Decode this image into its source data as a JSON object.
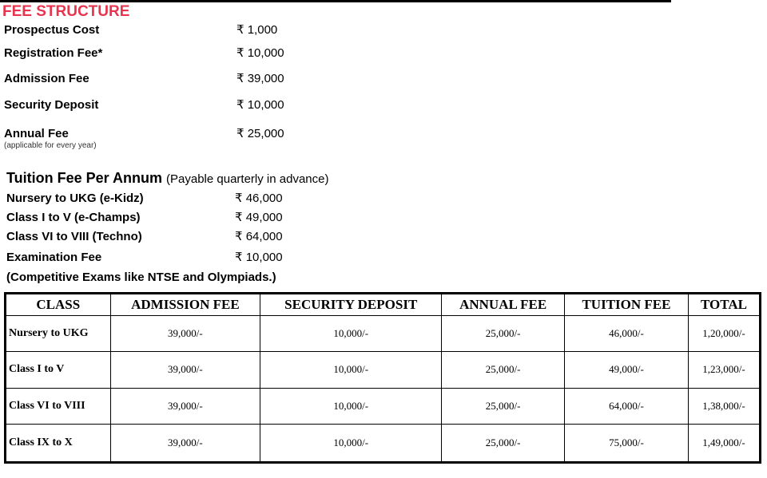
{
  "header": {
    "title": "FEE STRUCTURE"
  },
  "fees": [
    {
      "label": "Prospectus Cost",
      "amount": "₹ 1,000"
    },
    {
      "label": "Registration Fee*",
      "amount": "₹ 10,000"
    },
    {
      "label": "Admission Fee",
      "amount": "₹ 39,000"
    },
    {
      "label": "Security Deposit",
      "amount": "₹ 10,000"
    },
    {
      "label": "Annual Fee",
      "note": "(applicable for every year)",
      "amount": "₹ 25,000"
    }
  ],
  "tuition": {
    "heading": "Tuition Fee Per Annum",
    "heading_note": "(Payable quarterly in advance)",
    "rows": [
      {
        "label": "Nursery to UKG (e-Kidz)",
        "amount": "₹ 46,000"
      },
      {
        "label": "Class I to V (e-Champs)",
        "amount": "₹ 49,000"
      },
      {
        "label": "Class VI to VIII (Techno)",
        "amount": "₹ 64,000"
      },
      {
        "label": "Examination Fee",
        "amount": "₹ 10,000"
      }
    ],
    "footnote": "(Competitive Exams like NTSE and Olympiads.)"
  },
  "table": {
    "columns": [
      "CLASS",
      "ADMISSION FEE",
      "SECURITY DEPOSIT",
      "ANNUAL FEE",
      "TUITION FEE",
      "TOTAL"
    ],
    "rows": [
      [
        "Nursery to UKG",
        "39,000/-",
        "10,000/-",
        "25,000/-",
        "46,000/-",
        "1,20,000/-"
      ],
      [
        "Class I to V",
        "39,000/-",
        "10,000/-",
        "25,000/-",
        "49,000/-",
        "1,23,000/-"
      ],
      [
        "Class VI to VIII",
        "39,000/-",
        "10,000/-",
        "25,000/-",
        "64,000/-",
        "1,38,000/-"
      ],
      [
        "Class IX to X",
        "39,000/-",
        "10,000/-",
        "25,000/-",
        "75,000/-",
        "1,49,000/-"
      ]
    ]
  }
}
